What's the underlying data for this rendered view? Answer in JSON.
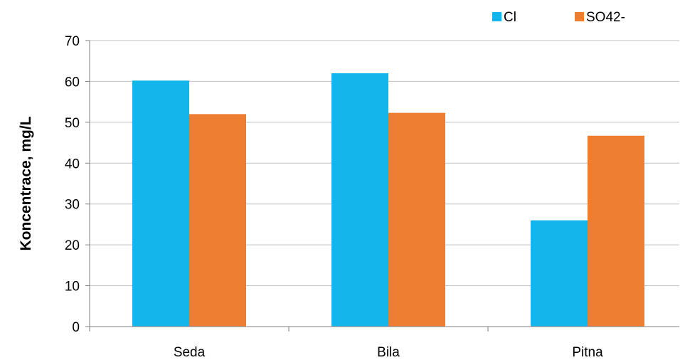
{
  "chart_data": {
    "type": "bar",
    "categories": [
      "Seda",
      "Bila",
      "Pitna"
    ],
    "series": [
      {
        "name": "Cl",
        "values": [
          60.2,
          62.0,
          26.0
        ],
        "color": "#13B5EA"
      },
      {
        "name": "SO42-",
        "values": [
          52.0,
          52.3,
          46.7
        ],
        "color": "#ED7D31"
      }
    ],
    "title": "",
    "xlabel": "",
    "ylabel": "Koncentrace, mg/L",
    "ylim": [
      0,
      70
    ],
    "yticks": [
      0,
      10,
      20,
      30,
      40,
      50,
      60,
      70
    ],
    "grid": true,
    "legend_position": "top-right"
  }
}
